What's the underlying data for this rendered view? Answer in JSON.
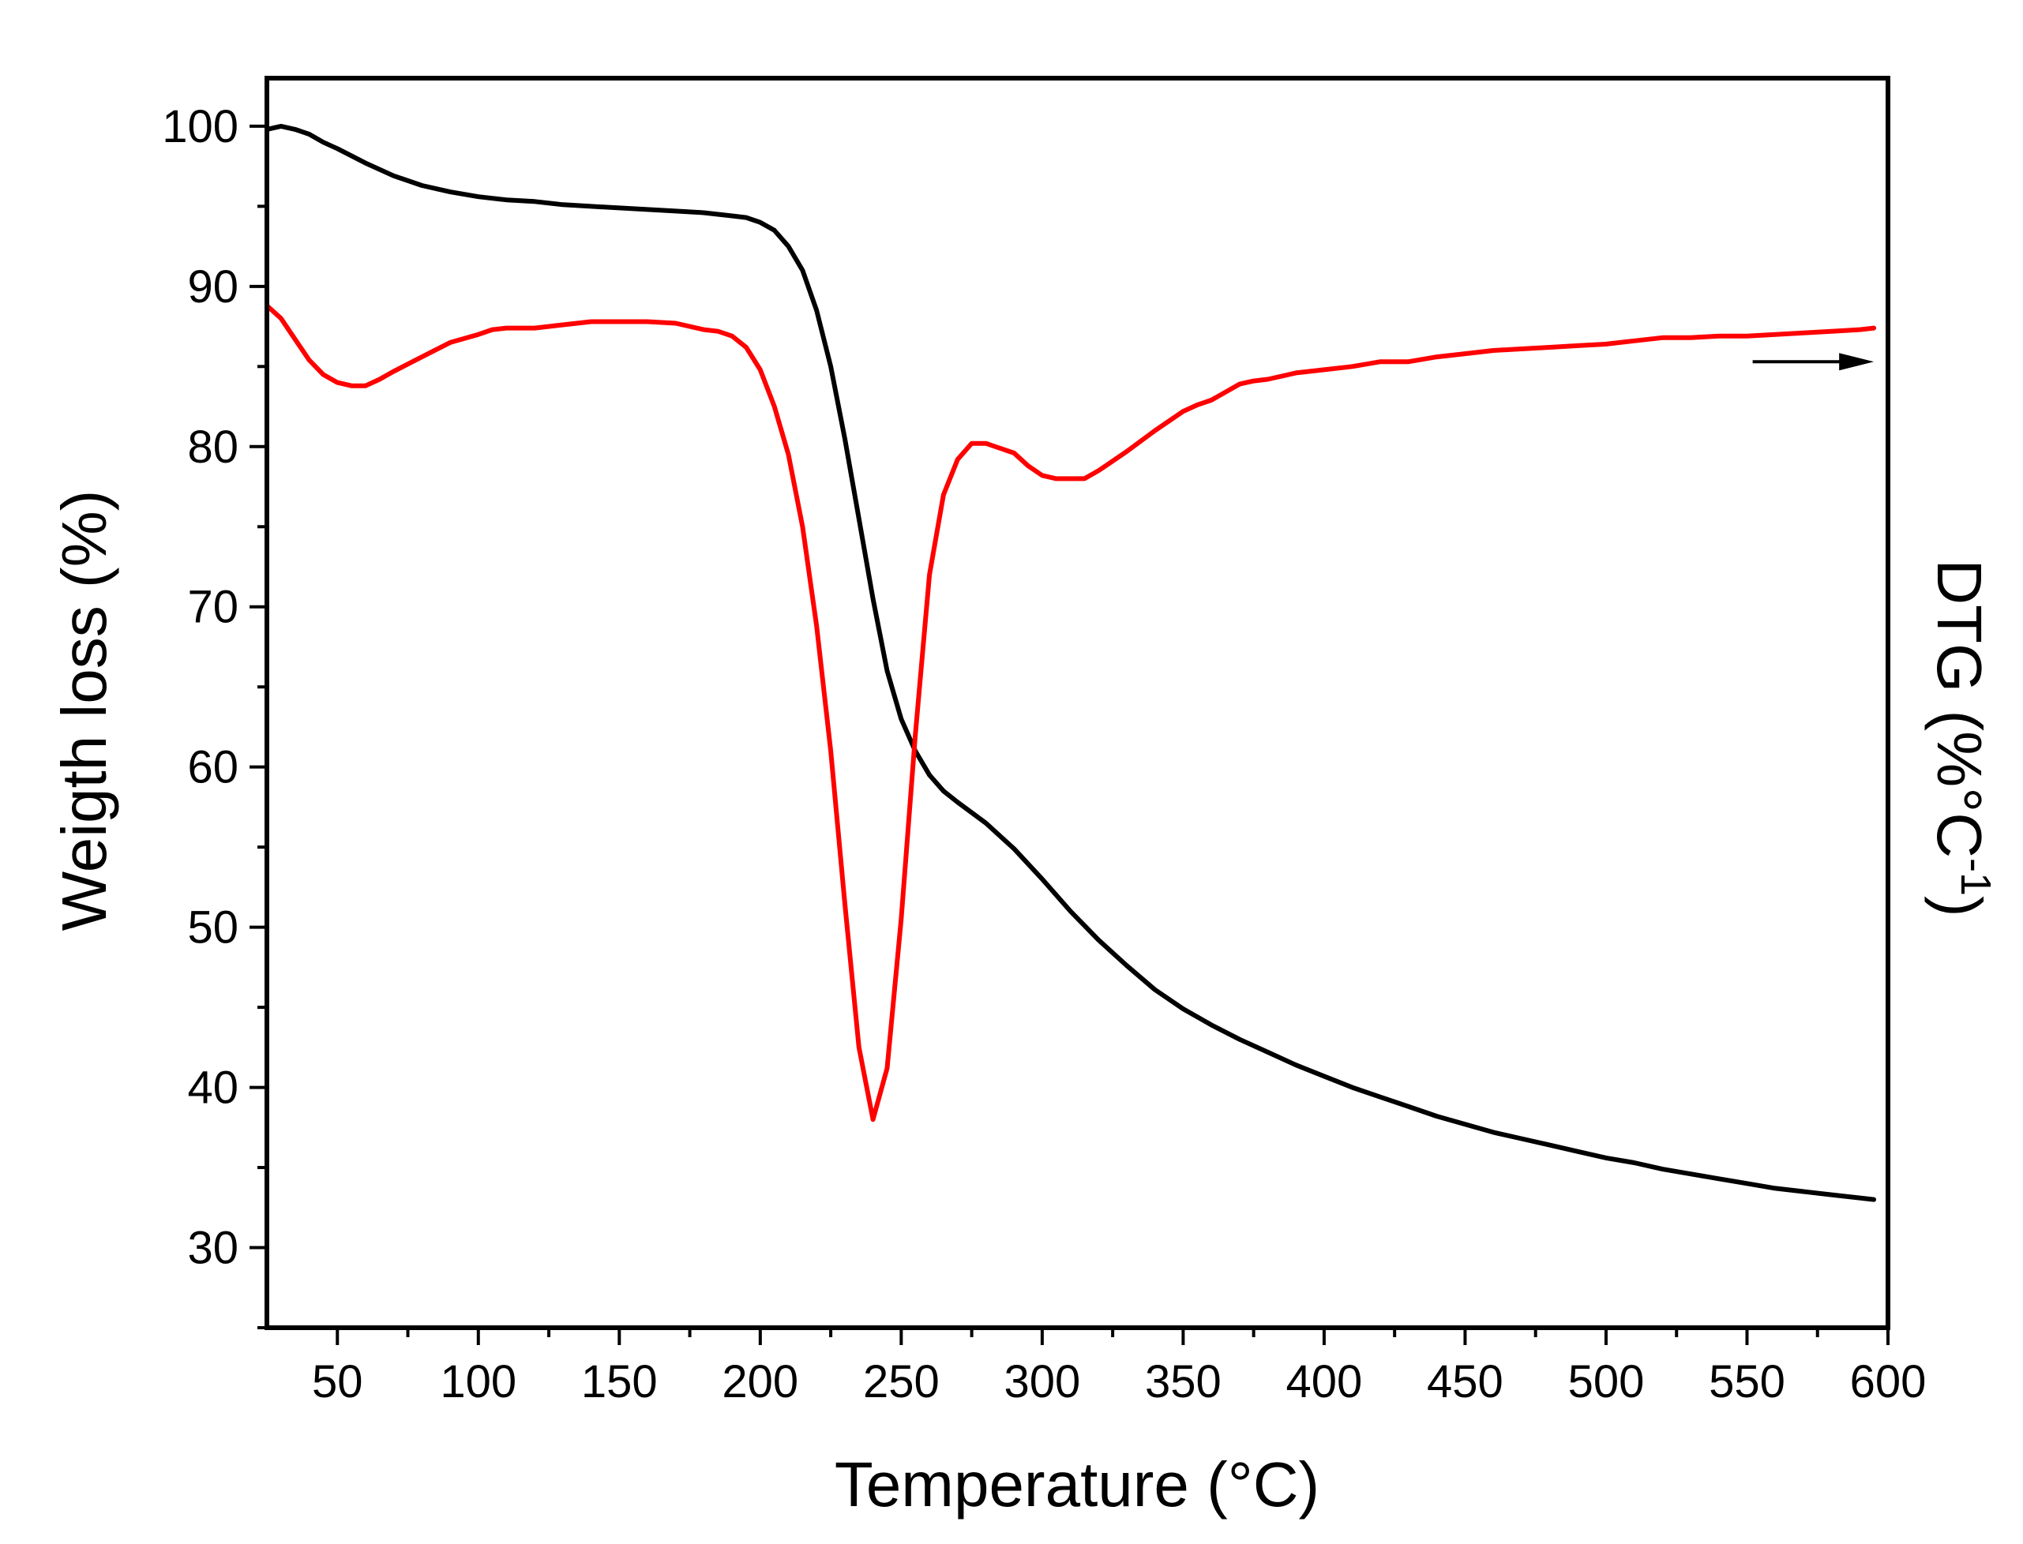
{
  "chart_data": {
    "type": "line",
    "title": "",
    "xlabel": "Temperature (°C)",
    "ylabel": "Weigth loss (%)",
    "y2label": {
      "prefix": "DTG (%°C",
      "superscript": "-1",
      "suffix": ")"
    },
    "xlim": [
      25,
      600
    ],
    "ylim": [
      25,
      103
    ],
    "x_ticks": [
      50,
      100,
      150,
      200,
      250,
      300,
      350,
      400,
      450,
      500,
      550,
      600
    ],
    "y_ticks": [
      30,
      40,
      50,
      60,
      70,
      80,
      90,
      100
    ],
    "grid": false,
    "arrow_annotation": {
      "from": [
        552,
        85.3
      ],
      "to": [
        595,
        85.3
      ],
      "meaning": "DTG curve refers to right axis"
    },
    "series": [
      {
        "name": "Weight loss",
        "color": "#000000",
        "axis": "left",
        "x": [
          25,
          30,
          35,
          40,
          45,
          50,
          60,
          70,
          80,
          90,
          100,
          110,
          120,
          130,
          140,
          150,
          160,
          170,
          180,
          190,
          195,
          200,
          205,
          210,
          215,
          220,
          225,
          230,
          235,
          240,
          245,
          250,
          255,
          260,
          265,
          270,
          280,
          290,
          300,
          310,
          320,
          330,
          340,
          350,
          360,
          370,
          380,
          390,
          400,
          410,
          420,
          430,
          440,
          450,
          460,
          470,
          480,
          490,
          500,
          510,
          520,
          530,
          540,
          550,
          560,
          570,
          580,
          590,
          595
        ],
        "y": [
          99.8,
          100.0,
          99.8,
          99.5,
          99.0,
          98.6,
          97.7,
          96.9,
          96.3,
          95.9,
          95.6,
          95.4,
          95.3,
          95.1,
          95.0,
          94.9,
          94.8,
          94.7,
          94.6,
          94.4,
          94.3,
          94.0,
          93.5,
          92.5,
          91.0,
          88.5,
          85.0,
          80.5,
          75.5,
          70.5,
          66.0,
          63.0,
          61.0,
          59.5,
          58.5,
          57.8,
          56.5,
          54.9,
          53.0,
          51.0,
          49.2,
          47.6,
          46.1,
          44.9,
          43.9,
          43.0,
          42.2,
          41.4,
          40.7,
          40.0,
          39.4,
          38.8,
          38.2,
          37.7,
          37.2,
          36.8,
          36.4,
          36.0,
          35.6,
          35.3,
          34.9,
          34.6,
          34.3,
          34.0,
          33.7,
          33.5,
          33.3,
          33.1,
          33.0
        ]
      },
      {
        "name": "DTG",
        "color": "#ff0000",
        "axis": "right",
        "x": [
          25,
          30,
          35,
          40,
          45,
          50,
          55,
          60,
          65,
          70,
          80,
          90,
          100,
          105,
          110,
          120,
          130,
          140,
          150,
          160,
          170,
          180,
          185,
          190,
          195,
          200,
          205,
          210,
          215,
          220,
          225,
          230,
          235,
          240,
          245,
          250,
          255,
          260,
          265,
          270,
          275,
          280,
          290,
          295,
          300,
          305,
          310,
          315,
          320,
          330,
          340,
          350,
          355,
          360,
          365,
          370,
          375,
          380,
          385,
          390,
          395,
          400,
          410,
          420,
          430,
          440,
          450,
          460,
          470,
          480,
          490,
          500,
          510,
          520,
          530,
          540,
          550,
          560,
          570,
          580,
          590,
          595
        ],
        "y": [
          88.8,
          88.0,
          86.7,
          85.4,
          84.5,
          84.0,
          83.8,
          83.8,
          84.2,
          84.7,
          85.6,
          86.5,
          87.0,
          87.3,
          87.4,
          87.4,
          87.6,
          87.8,
          87.8,
          87.8,
          87.7,
          87.3,
          87.2,
          86.9,
          86.2,
          84.8,
          82.5,
          79.5,
          75.0,
          68.8,
          61.0,
          51.5,
          42.5,
          38.0,
          41.2,
          50.5,
          62.0,
          72.0,
          77.0,
          79.2,
          80.2,
          80.2,
          79.6,
          78.8,
          78.2,
          78.0,
          78.0,
          78.0,
          78.5,
          79.7,
          81.0,
          82.2,
          82.6,
          82.9,
          83.4,
          83.9,
          84.1,
          84.2,
          84.4,
          84.6,
          84.7,
          84.8,
          85.0,
          85.3,
          85.3,
          85.6,
          85.8,
          86.0,
          86.1,
          86.2,
          86.3,
          86.4,
          86.6,
          86.8,
          86.8,
          86.9,
          86.9,
          87.0,
          87.1,
          87.2,
          87.3,
          87.4
        ]
      }
    ]
  }
}
